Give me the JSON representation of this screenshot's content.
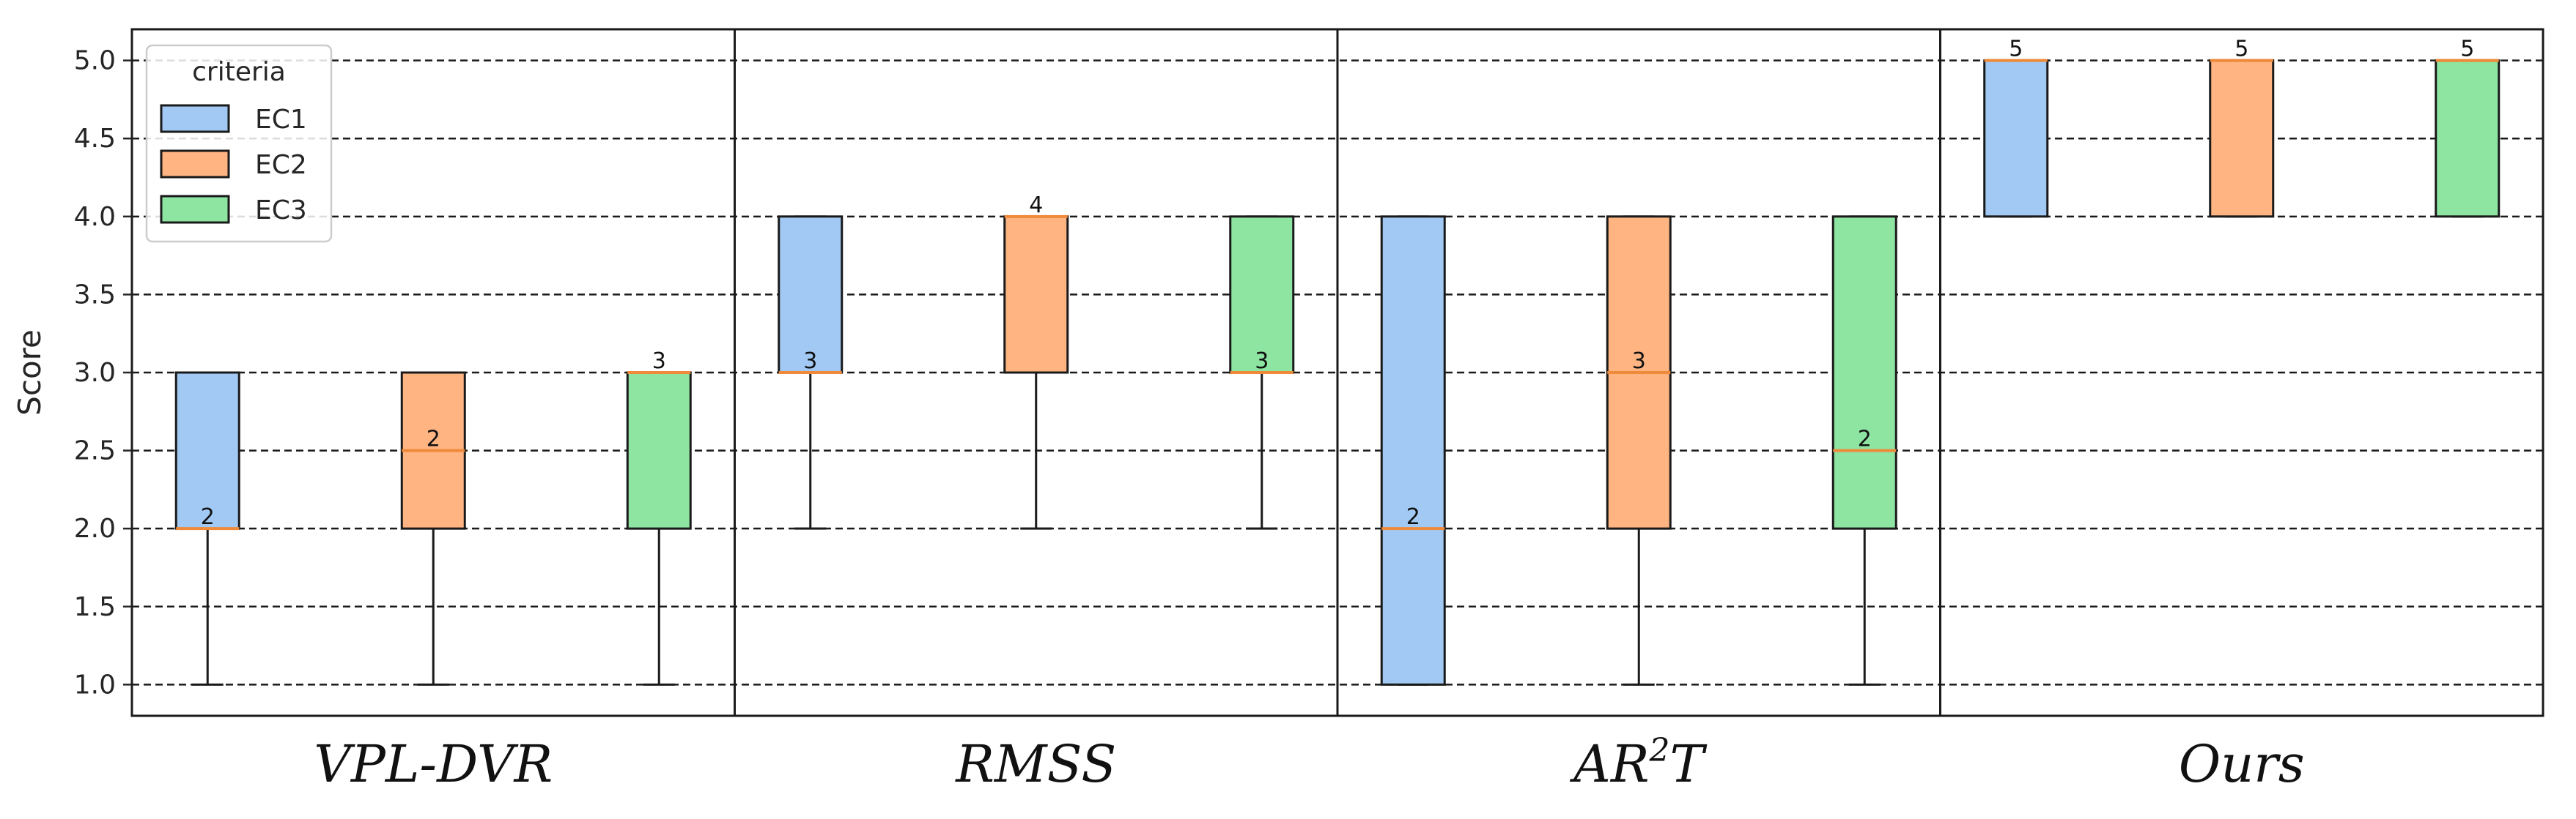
{
  "chart_data": {
    "type": "box",
    "title": "",
    "xlabel": "",
    "ylabel": "Score",
    "ylim": [
      0.8,
      5.2
    ],
    "yticks": [
      1.0,
      1.5,
      2.0,
      2.5,
      3.0,
      3.5,
      4.0,
      4.5,
      5.0
    ],
    "ytick_labels": [
      "1.0",
      "1.5",
      "2.0",
      "2.5",
      "3.0",
      "3.5",
      "4.0",
      "4.5",
      "5.0"
    ],
    "grid": "horizontal-dashed",
    "legend": {
      "title": "criteria",
      "placement": "top-left",
      "entries": [
        {
          "label": "EC1",
          "color": "#a1c9f4"
        },
        {
          "label": "EC2",
          "color": "#ffb482"
        },
        {
          "label": "EC3",
          "color": "#8de5a1"
        }
      ]
    },
    "median_color": "#ee8a3a",
    "groups": [
      {
        "name": "VPL-DVR",
        "boxes": [
          {
            "series": "EC1",
            "whisker_low": 1,
            "q1": 2,
            "median": 2,
            "q3": 3,
            "whisker_high": 3,
            "median_label": "2"
          },
          {
            "series": "EC2",
            "whisker_low": 1,
            "q1": 2,
            "median": 2.5,
            "q3": 3,
            "whisker_high": 3,
            "median_label": "2"
          },
          {
            "series": "EC3",
            "whisker_low": 1,
            "q1": 2,
            "median": 3,
            "q3": 3,
            "whisker_high": 3,
            "median_label": "3"
          }
        ]
      },
      {
        "name": "RMSS",
        "boxes": [
          {
            "series": "EC1",
            "whisker_low": 2,
            "q1": 3,
            "median": 3,
            "q3": 4,
            "whisker_high": 4,
            "median_label": "3"
          },
          {
            "series": "EC2",
            "whisker_low": 2,
            "q1": 3,
            "median": 4,
            "q3": 4,
            "whisker_high": 4,
            "median_label": "4"
          },
          {
            "series": "EC3",
            "whisker_low": 2,
            "q1": 3,
            "median": 3,
            "q3": 4,
            "whisker_high": 4,
            "median_label": "3"
          }
        ]
      },
      {
        "name": "AR",
        "name_sup": "2",
        "name_suffix": "T",
        "boxes": [
          {
            "series": "EC1",
            "whisker_low": 1,
            "q1": 1,
            "median": 2,
            "q3": 4,
            "whisker_high": 4,
            "median_label": "2"
          },
          {
            "series": "EC2",
            "whisker_low": 1,
            "q1": 2,
            "median": 3,
            "q3": 4,
            "whisker_high": 4,
            "median_label": "3"
          },
          {
            "series": "EC3",
            "whisker_low": 1,
            "q1": 2,
            "median": 2.5,
            "q3": 4,
            "whisker_high": 4,
            "median_label": "2"
          }
        ]
      },
      {
        "name": "Ours",
        "boxes": [
          {
            "series": "EC1",
            "whisker_low": 4,
            "q1": 4,
            "median": 5,
            "q3": 5,
            "whisker_high": 5,
            "median_label": "5"
          },
          {
            "series": "EC2",
            "whisker_low": 4,
            "q1": 4,
            "median": 5,
            "q3": 5,
            "whisker_high": 5,
            "median_label": "5"
          },
          {
            "series": "EC3",
            "whisker_low": 4,
            "q1": 4,
            "median": 5,
            "q3": 5,
            "whisker_high": 5,
            "median_label": "5"
          }
        ]
      }
    ]
  }
}
